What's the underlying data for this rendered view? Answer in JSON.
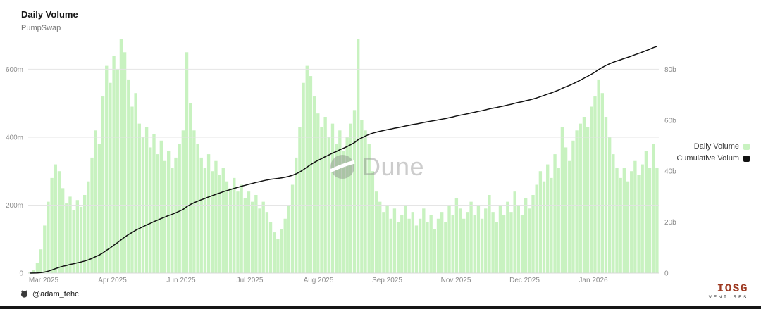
{
  "header": {
    "title": "Daily Volume",
    "subtitle": "PumpSwap"
  },
  "legend": {
    "items": [
      {
        "label": "Daily Volume",
        "color": "#c8f2c0"
      },
      {
        "label": "Cumulative Volum",
        "color": "#111111"
      }
    ]
  },
  "watermark": {
    "text": "Dune"
  },
  "footer": {
    "attribution": "@adam_tehc",
    "logo_line1": "IOSG",
    "logo_line2": "VENTURES",
    "logo_color": "#9e3a22"
  },
  "chart_data": {
    "type": "bar",
    "title": "Daily Volume",
    "subtitle": "PumpSwap",
    "grid": "horizontal only",
    "legend_position": "right",
    "x_axis": {
      "tick_labels": [
        "Mar 2025",
        "Apr 2025",
        "Jun 2025",
        "Jul 2025",
        "Aug 2025",
        "Sep 2025",
        "Nov 2025",
        "Dec 2025",
        "Jan 2026"
      ]
    },
    "left_axis": {
      "tick_labels": [
        "0",
        "200m",
        "400m",
        "600m"
      ],
      "tick_values_m": [
        0,
        200,
        400,
        600
      ],
      "max_m": 690
    },
    "right_axis": {
      "tick_labels": [
        "0",
        "20b",
        "40b",
        "60b",
        "80b"
      ],
      "tick_values_b": [
        0,
        20,
        40,
        60,
        80
      ],
      "max_b": 92
    },
    "series": [
      {
        "name": "Daily Volume",
        "type": "bar",
        "axis": "left",
        "unit": "USD millions",
        "color": "#c8f2c0",
        "values": [
          3,
          10,
          30,
          70,
          140,
          210,
          280,
          320,
          300,
          250,
          205,
          225,
          185,
          215,
          195,
          230,
          270,
          340,
          420,
          380,
          520,
          610,
          560,
          640,
          600,
          690,
          650,
          570,
          490,
          530,
          440,
          400,
          430,
          370,
          410,
          350,
          390,
          330,
          360,
          310,
          340,
          380,
          420,
          650,
          500,
          420,
          380,
          340,
          310,
          350,
          300,
          330,
          290,
          310,
          270,
          250,
          280,
          240,
          260,
          220,
          240,
          210,
          230,
          190,
          210,
          180,
          150,
          120,
          100,
          130,
          160,
          200,
          260,
          340,
          430,
          560,
          610,
          580,
          520,
          470,
          430,
          460,
          400,
          440,
          380,
          420,
          360,
          400,
          440,
          480,
          690,
          450,
          420,
          380,
          300,
          240,
          210,
          180,
          200,
          160,
          190,
          150,
          170,
          200,
          160,
          180,
          140,
          160,
          190,
          150,
          170,
          130,
          160,
          180,
          150,
          200,
          170,
          220,
          190,
          160,
          180,
          210,
          170,
          200,
          160,
          190,
          230,
          180,
          150,
          200,
          170,
          210,
          180,
          240,
          200,
          170,
          220,
          190,
          230,
          260,
          300,
          270,
          320,
          280,
          350,
          310,
          430,
          370,
          330,
          390,
          420,
          440,
          460,
          430,
          490,
          520,
          570,
          530,
          460,
          400,
          350,
          310,
          280,
          310,
          270,
          300,
          330,
          290,
          320,
          360,
          310,
          380,
          310
        ]
      },
      {
        "name": "Cumulative Volum",
        "type": "line",
        "axis": "right",
        "unit": "USD billions",
        "color": "#111111",
        "cumulative_of": "Daily Volume",
        "final_value_b": 89
      }
    ]
  }
}
